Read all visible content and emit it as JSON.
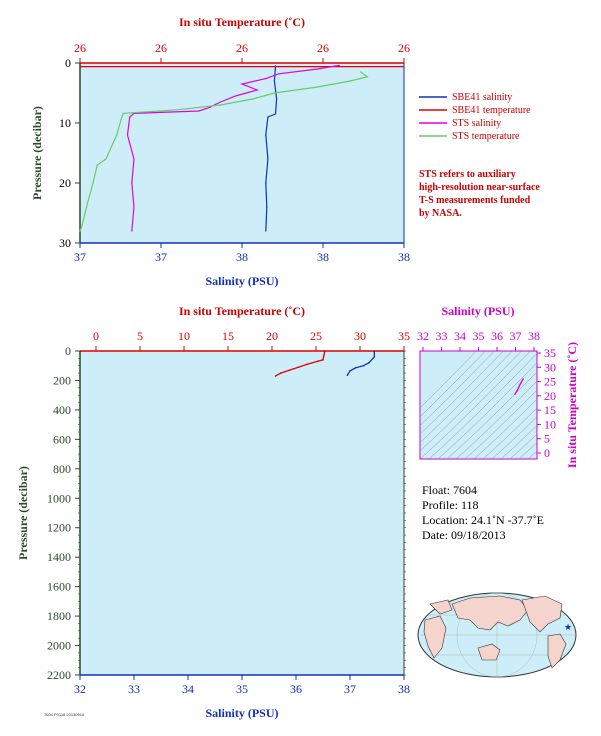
{
  "colors": {
    "plot_bg": "#cdeef8",
    "temp": "#e00000",
    "sal": "#1030c0",
    "sts_sal": "#e000e0",
    "sts_temp": "#66cc66",
    "depth_axis": "#2a4a2a",
    "ts_axis": "#cc00cc"
  },
  "chart_data": [
    {
      "id": "top-profile",
      "type": "line",
      "title": "",
      "x_top_label": "In situ Temperature (˚C)",
      "x_top_ticks": [
        "26",
        "26",
        "26",
        "26",
        "26"
      ],
      "x_bottom_label": "Salinity (PSU)",
      "x_bottom_ticks": [
        "37",
        "37",
        "38",
        "38",
        "38"
      ],
      "ylabel": "Pressure (decibar)",
      "ylim": [
        30,
        0
      ],
      "y_ticks": [
        0,
        10,
        20,
        30
      ],
      "legend_position": "right",
      "series": [
        {
          "name": "SBE41 salinity",
          "color": "#1030c0",
          "points": [
            [
              37.905,
              0.5
            ],
            [
              37.9,
              3
            ],
            [
              37.91,
              6
            ],
            [
              37.905,
              8.5
            ],
            [
              37.87,
              9
            ],
            [
              37.86,
              12
            ],
            [
              37.87,
              16
            ],
            [
              37.86,
              20
            ],
            [
              37.865,
              24
            ],
            [
              37.86,
              28
            ]
          ]
        },
        {
          "name": "SBE41 temperature",
          "color": "#e00000",
          "points": [
            [
              38.0,
              0.5
            ]
          ]
        },
        {
          "name": "STS salinity",
          "color": "#e000e0",
          "points": [
            [
              38.2,
              0.4
            ],
            [
              38.1,
              1.0
            ],
            [
              37.92,
              1.8
            ],
            [
              37.86,
              2.6
            ],
            [
              37.75,
              3.5
            ],
            [
              37.82,
              4.5
            ],
            [
              37.72,
              5.5
            ],
            [
              37.65,
              6.5
            ],
            [
              37.6,
              7.4
            ],
            [
              37.55,
              8.0
            ],
            [
              37.25,
              8.4
            ],
            [
              37.23,
              9.0
            ],
            [
              37.22,
              12
            ],
            [
              37.25,
              16
            ],
            [
              37.24,
              20
            ],
            [
              37.25,
              24
            ],
            [
              37.24,
              28
            ]
          ]
        },
        {
          "name": "STS temperature",
          "color": "#66cc66",
          "points": [
            [
              38.3,
              1.5
            ],
            [
              38.33,
              2.3
            ],
            [
              38.25,
              3.0
            ],
            [
              38.1,
              4.0
            ],
            [
              37.9,
              5.0
            ],
            [
              37.8,
              6.0
            ],
            [
              37.65,
              7.0
            ],
            [
              37.45,
              7.8
            ],
            [
              37.2,
              8.4
            ],
            [
              37.19,
              9.5
            ],
            [
              37.17,
              12
            ],
            [
              37.12,
              16
            ],
            [
              37.08,
              17
            ],
            [
              37.06,
              20
            ],
            [
              37.03,
              24
            ],
            [
              37.01,
              27
            ],
            [
              37.0,
              28
            ]
          ]
        }
      ],
      "legend": [
        {
          "label": "SBE41 salinity",
          "color": "#1030c0"
        },
        {
          "label": "SBE41 temperature",
          "color": "#e00000"
        },
        {
          "label": "STS salinity",
          "color": "#e000e0"
        },
        {
          "label": "STS temperature",
          "color": "#66cc66"
        }
      ]
    },
    {
      "id": "bottom-profile",
      "type": "line",
      "title": "",
      "x_top_label": "In situ Temperature (˚C)",
      "x_top_ticks": [
        0,
        5,
        10,
        15,
        20,
        25,
        30,
        35
      ],
      "x_bottom_label": "Salinity (PSU)",
      "x_bottom_ticks": [
        32,
        33,
        34,
        35,
        36,
        37,
        38
      ],
      "ylabel": "Pressure (decibar)",
      "ylim": [
        2200,
        0
      ],
      "y_ticks": [
        0,
        200,
        400,
        600,
        800,
        1000,
        1200,
        1400,
        1600,
        1800,
        2000,
        2200
      ],
      "series": [
        {
          "name": "temperature",
          "color": "#e00000",
          "axis": "temp",
          "points": [
            [
              26.0,
              0
            ],
            [
              25.9,
              30
            ],
            [
              25.8,
              60
            ],
            [
              25.2,
              70
            ],
            [
              24.0,
              90
            ],
            [
              23.0,
              110
            ],
            [
              22.0,
              130
            ],
            [
              21.0,
              150
            ],
            [
              20.4,
              170
            ]
          ]
        },
        {
          "name": "salinity",
          "color": "#1030c0",
          "axis": "sal",
          "points": [
            [
              37.45,
              0
            ],
            [
              37.45,
              40
            ],
            [
              37.35,
              80
            ],
            [
              37.25,
              100
            ],
            [
              37.1,
              115
            ],
            [
              37.0,
              135
            ],
            [
              36.95,
              165
            ]
          ]
        }
      ]
    },
    {
      "id": "ts-diagram",
      "type": "line",
      "title": "",
      "x_top_label": "Salinity (PSU)",
      "x_top_ticks": [
        32,
        33,
        34,
        35,
        36,
        37,
        38
      ],
      "ylabel": "In situ Temperature (˚C)",
      "y_ticks": [
        0,
        5,
        10,
        15,
        20,
        25,
        30,
        35
      ],
      "xlim": [
        32,
        38
      ],
      "ylim": [
        -5,
        35
      ],
      "series": [
        {
          "name": "T-S",
          "color": "#e000e0",
          "points": [
            [
              36.95,
              20.4
            ],
            [
              37.1,
              22.0
            ],
            [
              37.25,
              24.0
            ],
            [
              37.4,
              25.8
            ],
            [
              37.45,
              26.0
            ]
          ]
        }
      ]
    }
  ],
  "float_info": {
    "float": "Float:  7604",
    "profile": "Profile:  118",
    "location": "Location:  24.1˚N  -37.7˚E",
    "date": "Date:  09/18/2013"
  },
  "note_lines": [
    "STS refers to auxiliary",
    "high-resolution near-surface",
    "T-S measurements funded",
    "by NASA."
  ],
  "footer": "7604 P0118 20130918"
}
